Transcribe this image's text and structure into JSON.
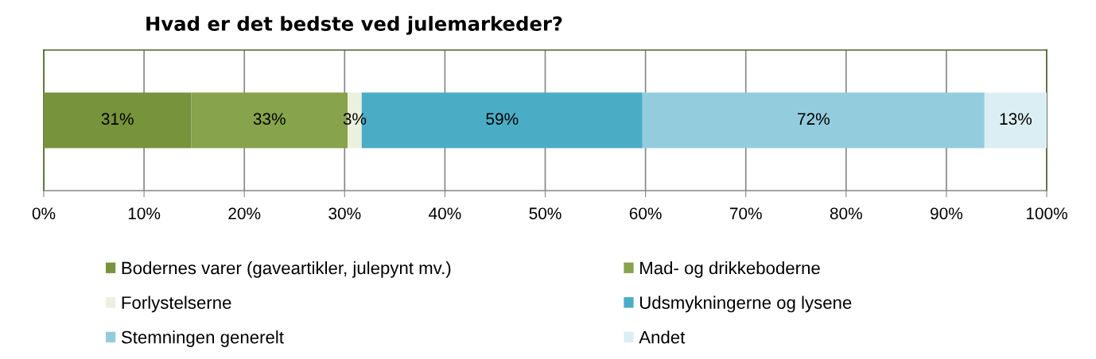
{
  "chart_data": {
    "type": "bar",
    "title": "Hvad er det bedste ved julemarkeder?",
    "orientation": "horizontal",
    "stacked": true,
    "categories": [
      null
    ],
    "xlim": [
      0,
      100
    ],
    "xticks": [
      {
        "value": 0,
        "label": "0%"
      },
      {
        "value": 10,
        "label": "10%"
      },
      {
        "value": 20,
        "label": "20%"
      },
      {
        "value": 30,
        "label": "30%"
      },
      {
        "value": 40,
        "label": "40%"
      },
      {
        "value": 50,
        "label": "50%"
      },
      {
        "value": 60,
        "label": "60%"
      },
      {
        "value": 70,
        "label": "70%"
      },
      {
        "value": 80,
        "label": "80%"
      },
      {
        "value": 90,
        "label": "90%"
      },
      {
        "value": 100,
        "label": "100%"
      }
    ],
    "grid": "x",
    "legend": "bottom",
    "tick_labels": "x",
    "series": [
      {
        "name": "Bodernes varer (gaveartikler, julepynt mv.)",
        "color": "#77933c",
        "values": [
          14.7
        ]
      },
      {
        "name": "Mad- og drikkeboderne",
        "color": "#87a34b",
        "values": [
          15.6
        ]
      },
      {
        "name": "Forlystelserne",
        "color": "#ebf1de",
        "values": [
          1.4
        ]
      },
      {
        "name": "Udsmykningerne og lysene",
        "color": "#4bacc6",
        "values": [
          28.0
        ]
      },
      {
        "name": "Stemningen generelt",
        "color": "#93cddd",
        "values": [
          34.1
        ]
      },
      {
        "name": "Andet",
        "color": "#dbeef4",
        "values": [
          6.2
        ]
      }
    ],
    "annotations": [
      "31%",
      "33%",
      "3%",
      "59%",
      "72%",
      "13%"
    ]
  }
}
